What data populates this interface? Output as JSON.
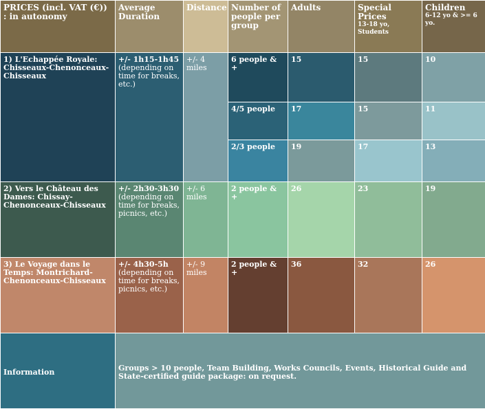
{
  "headers": {
    "prices": "PRICES (incl. VAT (€)) : in autonomy",
    "duration": "Average Duration",
    "distance": "Distance",
    "people": "Number of people per group",
    "adults": "Adults",
    "special": "Special Prices",
    "special_sub": "13-18 yo, Students",
    "children": "Children",
    "children_sub": "6-12 yo & >= 6 yo."
  },
  "routes": [
    {
      "name": "1) L'Echappée Royale: Chisseaux-Chenonceaux-Chisseaux",
      "duration": "+/- 1h15-1h45",
      "duration_note": "(depending on time for breaks, etc.)",
      "distance": "+/- 4 miles",
      "rows": [
        {
          "group": "6 people & +",
          "adults": "15",
          "special": "15",
          "children": "10"
        },
        {
          "group": "4/5 people",
          "adults": "17",
          "special": "15",
          "children": "11"
        },
        {
          "group": "2/3 people",
          "adults": "19",
          "special": "17",
          "children": "13"
        }
      ]
    },
    {
      "name": "2) Vers le Château des Dames: Chissay-Chenonceaux-Chisseaux",
      "duration": "+/- 2h30-3h30",
      "duration_note": "(depending on time for breaks, picnics, etc.)",
      "distance": "+/- 6 miles",
      "rows": [
        {
          "group": "2 people & +",
          "adults": "26",
          "special": "23",
          "children": "19"
        }
      ]
    },
    {
      "name": "3) Le Voyage dans le Temps: Montrichard-Chenonceaux-Chisseaux",
      "duration": "+/- 4h30-5h",
      "duration_note": "(depending on time for breaks, picnics, etc.)",
      "distance": "+/- 9 miles",
      "rows": [
        {
          "group": "2 people & +",
          "adults": "36",
          "special": "32",
          "children": "26"
        }
      ]
    }
  ],
  "info": {
    "label": "Information",
    "text": "Groups > 10 people, Team Building, Works Councils, Events, Historical Guide and State-certified guide package: on request."
  },
  "colors": {
    "header_dark": "#7b6a48",
    "header_mid": "#9c8d6c",
    "header_light": "#cdbc96",
    "route1_dark": "#1f4256",
    "route2_dark": "#3d5a4e",
    "route3_dark": "#c0876a",
    "info_dark": "#2e6e82",
    "info_light": "#72989a"
  }
}
